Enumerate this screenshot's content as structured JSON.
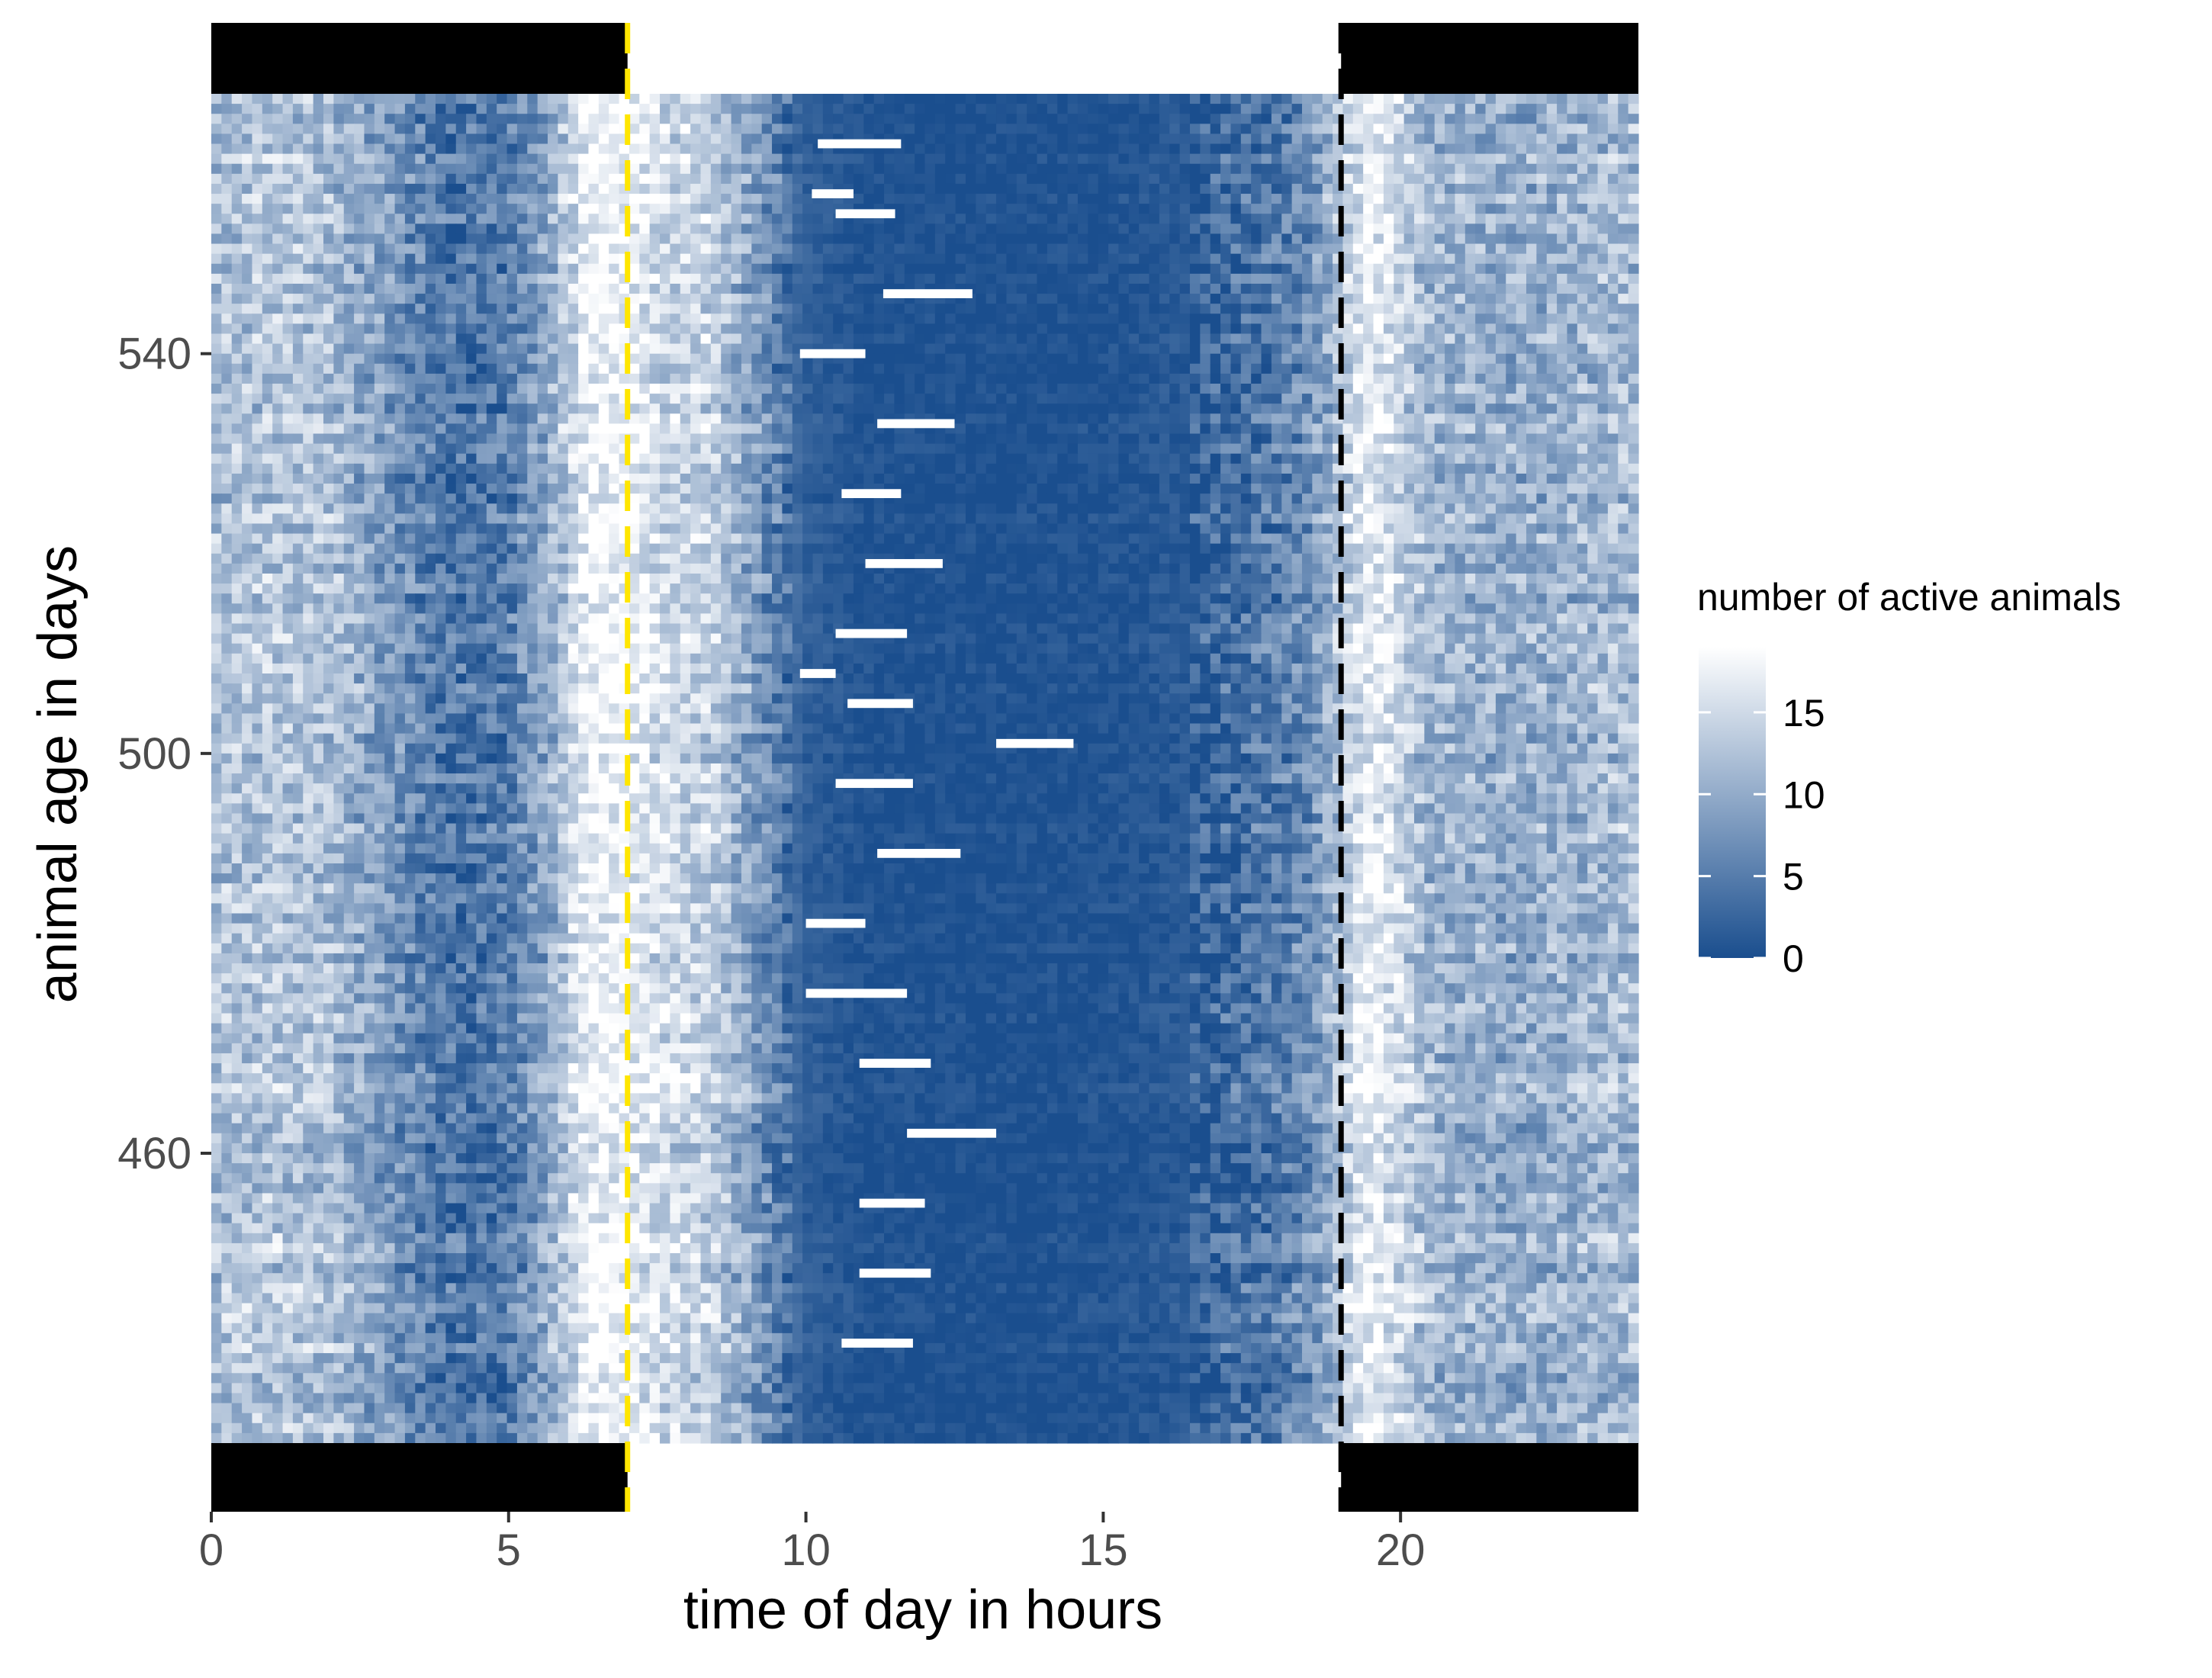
{
  "chart_data": {
    "type": "heatmap",
    "title": "",
    "xlabel": "time of day in hours",
    "ylabel": "animal age in days",
    "x_range": [
      0,
      24
    ],
    "y_range": [
      431,
      566
    ],
    "x_ticks": [
      0,
      5,
      10,
      15,
      20
    ],
    "y_ticks": [
      460,
      500,
      540
    ],
    "grid": false,
    "color_scale": {
      "title": "number of active animals",
      "low_color": "#1a4e8e",
      "high_color": "#ffffff",
      "min": 0,
      "max": 19,
      "ticks": [
        0,
        5,
        10,
        15
      ]
    },
    "lights_on_line": {
      "x": 7,
      "color": "#ffe600",
      "style": "dashed"
    },
    "lights_off_line": {
      "x": 19,
      "color": "#000000",
      "style": "dashed"
    },
    "dark_phase_bars": [
      [
        0,
        7
      ],
      [
        19,
        24
      ]
    ],
    "dark_bar_color": "#000000",
    "profile_x": [
      0,
      1,
      2,
      3,
      4,
      5,
      5.8,
      6.3,
      7,
      7.6,
      8.4,
      9.2,
      10,
      11,
      13,
      15,
      16.5,
      17.5,
      18.5,
      19,
      19.5,
      20.5,
      22,
      24
    ],
    "profile_values": [
      12,
      13,
      12,
      8,
      4,
      5,
      11,
      18,
      18,
      15,
      14,
      8,
      2,
      0.5,
      0.3,
      0.5,
      1.5,
      4,
      7,
      13,
      18,
      11,
      10,
      12
    ],
    "anomaly_rows": [
      {
        "age": 561,
        "x_start": 10.2,
        "x_end": 11.6
      },
      {
        "age": 556,
        "x_start": 10.1,
        "x_end": 10.8
      },
      {
        "age": 554,
        "x_start": 10.5,
        "x_end": 11.5
      },
      {
        "age": 546,
        "x_start": 11.3,
        "x_end": 12.8
      },
      {
        "age": 540,
        "x_start": 9.9,
        "x_end": 11.0
      },
      {
        "age": 533,
        "x_start": 11.2,
        "x_end": 12.5
      },
      {
        "age": 526,
        "x_start": 10.6,
        "x_end": 11.6
      },
      {
        "age": 519,
        "x_start": 11.0,
        "x_end": 12.3
      },
      {
        "age": 512,
        "x_start": 10.5,
        "x_end": 11.7
      },
      {
        "age": 508,
        "x_start": 9.9,
        "x_end": 10.5
      },
      {
        "age": 505,
        "x_start": 10.7,
        "x_end": 11.8
      },
      {
        "age": 501,
        "x_start": 13.2,
        "x_end": 14.5
      },
      {
        "age": 497,
        "x_start": 10.5,
        "x_end": 11.8
      },
      {
        "age": 490,
        "x_start": 11.2,
        "x_end": 12.6
      },
      {
        "age": 483,
        "x_start": 10.0,
        "x_end": 11.0
      },
      {
        "age": 476,
        "x_start": 10.0,
        "x_end": 11.7
      },
      {
        "age": 469,
        "x_start": 10.9,
        "x_end": 12.1
      },
      {
        "age": 462,
        "x_start": 11.7,
        "x_end": 13.2
      },
      {
        "age": 455,
        "x_start": 10.9,
        "x_end": 12.0
      },
      {
        "age": 448,
        "x_start": 10.9,
        "x_end": 12.1
      },
      {
        "age": 441,
        "x_start": 10.6,
        "x_end": 11.8
      }
    ]
  }
}
